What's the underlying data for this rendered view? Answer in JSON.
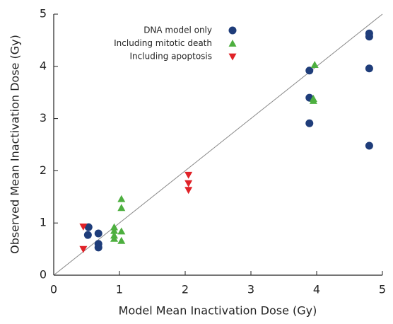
{
  "chart_data": {
    "type": "scatter",
    "x_label": "Model Mean Inactivation Dose (Gy)",
    "y_label": "Observed Mean Inactivation Dose (Gy)",
    "xlim": [
      0,
      5
    ],
    "ylim": [
      0,
      5
    ],
    "xticks": [
      0,
      1,
      2,
      3,
      4,
      5
    ],
    "yticks": [
      0,
      1,
      2,
      3,
      4,
      5
    ],
    "legend": "top-center",
    "series": [
      {
        "name": "DNA model only",
        "color": "#1f3d7a",
        "marker": "circle",
        "x": [
          0.53,
          0.52,
          0.68,
          0.68,
          0.68,
          3.89,
          3.89,
          3.89,
          4.8,
          4.8,
          4.8,
          4.8
        ],
        "values": [
          0.92,
          0.77,
          0.8,
          0.6,
          0.53,
          3.92,
          3.4,
          2.91,
          4.63,
          4.57,
          3.96,
          2.48
        ]
      },
      {
        "name": "Including mitotic death",
        "color": "#4daf3f",
        "marker": "triangle-up",
        "x": [
          3.97,
          3.95,
          3.95,
          1.03,
          1.03,
          0.92,
          0.92,
          0.92,
          0.92,
          1.03,
          1.03
        ],
        "values": [
          4.03,
          3.38,
          3.34,
          1.46,
          1.29,
          0.92,
          0.85,
          0.76,
          0.7,
          0.84,
          0.66
        ]
      },
      {
        "name": "Including apoptosis",
        "color": "#e02228",
        "marker": "triangle-down",
        "x": [
          0.45,
          0.45,
          2.05,
          2.05,
          2.05
        ],
        "values": [
          0.93,
          0.5,
          1.92,
          1.76,
          1.63
        ]
      }
    ]
  }
}
